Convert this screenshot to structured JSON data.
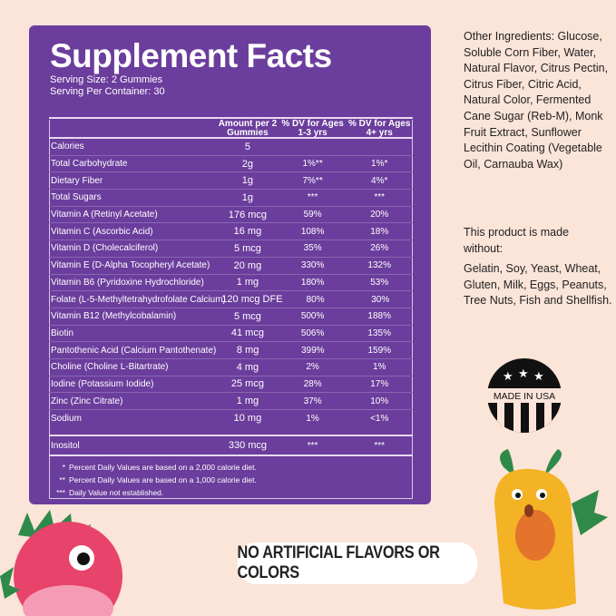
{
  "title": "Supplement Facts",
  "serving_size": "Serving Size: 2 Gummies",
  "servings_per_container": "Serving Per Container: 30",
  "headers": [
    "",
    "Amount per 2 Gummies",
    "% DV for Ages 1-3 yrs",
    "% DV for Ages 4+ yrs"
  ],
  "rows": [
    [
      "Calories",
      "5",
      "",
      ""
    ],
    [
      "Total Carbohydrate",
      "2g",
      "1%**",
      "1%*"
    ],
    [
      "Dietary Fiber",
      "1g",
      "7%**",
      "4%*"
    ],
    [
      "Total Sugars",
      "1g",
      "***",
      "***"
    ],
    [
      "Vitamin A (Retinyl Acetate)",
      "176 mcg",
      "59%",
      "20%"
    ],
    [
      "Vitamin C (Ascorbic Acid)",
      "16 mg",
      "108%",
      "18%"
    ],
    [
      "Vitamin D (Cholecalciferol)",
      "5 mcg",
      "35%",
      "26%"
    ],
    [
      "Vitamin E (D-Alpha Tocopheryl Acetate)",
      "20 mg",
      "330%",
      "132%"
    ],
    [
      "Vitamin B6 (Pyridoxine Hydrochloride)",
      "1 mg",
      "180%",
      "53%"
    ],
    [
      "Folate (L-5-Methyltetrahydrofolate Calcium)",
      "120 mcg DFE",
      "80%",
      "30%"
    ],
    [
      "Vitamin B12 (Methylcobalamin)",
      "5 mcg",
      "500%",
      "188%"
    ],
    [
      "Biotin",
      "41 mcg",
      "506%",
      "135%"
    ],
    [
      "Pantothenic Acid (Calcium Pantothenate)",
      "8 mg",
      "399%",
      "159%"
    ],
    [
      "Choline (Choline L-Bitartrate)",
      "4 mg",
      "2%",
      "1%"
    ],
    [
      "Iodine (Potassium Iodide)",
      "25 mcg",
      "28%",
      "17%"
    ],
    [
      "Zinc (Zinc Citrate)",
      "1 mg",
      "37%",
      "10%"
    ],
    [
      "Sodium",
      "10 mg",
      "1%",
      "<1%"
    ]
  ],
  "inositol": [
    "Inositol",
    "330 mcg",
    "***",
    "***"
  ],
  "footnotes": [
    {
      "mark": "*",
      "text": "Percent Daily Values are based on a 2,000 calorie diet."
    },
    {
      "mark": "**",
      "text": "Percent Daily Values are based on a 1,000 calorie diet."
    },
    {
      "mark": "***",
      "text": "Daily Value not established."
    }
  ],
  "other_ingredients": "Other Ingredients: Glucose, Soluble Corn Fiber, Water, Natural Flavor, Citrus Pectin, Citrus Fiber, Citric Acid, Natural Color, Fermented Cane Sugar (Reb-M), Monk Fruit Extract, Sunflower Lecithin Coating (Vegetable Oil, Carnauba Wax)",
  "made_without_label": "This product is made without:",
  "made_without": "Gelatin, Soy, Yeast, Wheat, Gluten, Milk, Eggs, Peanuts, Tree Nuts, Fish and Shellfish.",
  "badge": "MADE IN USA",
  "banner": "NO ARTIFICIAL FLAVORS OR COLORS",
  "colors": {
    "panel": "#6b3d9c",
    "background": "#fbe4d8"
  }
}
